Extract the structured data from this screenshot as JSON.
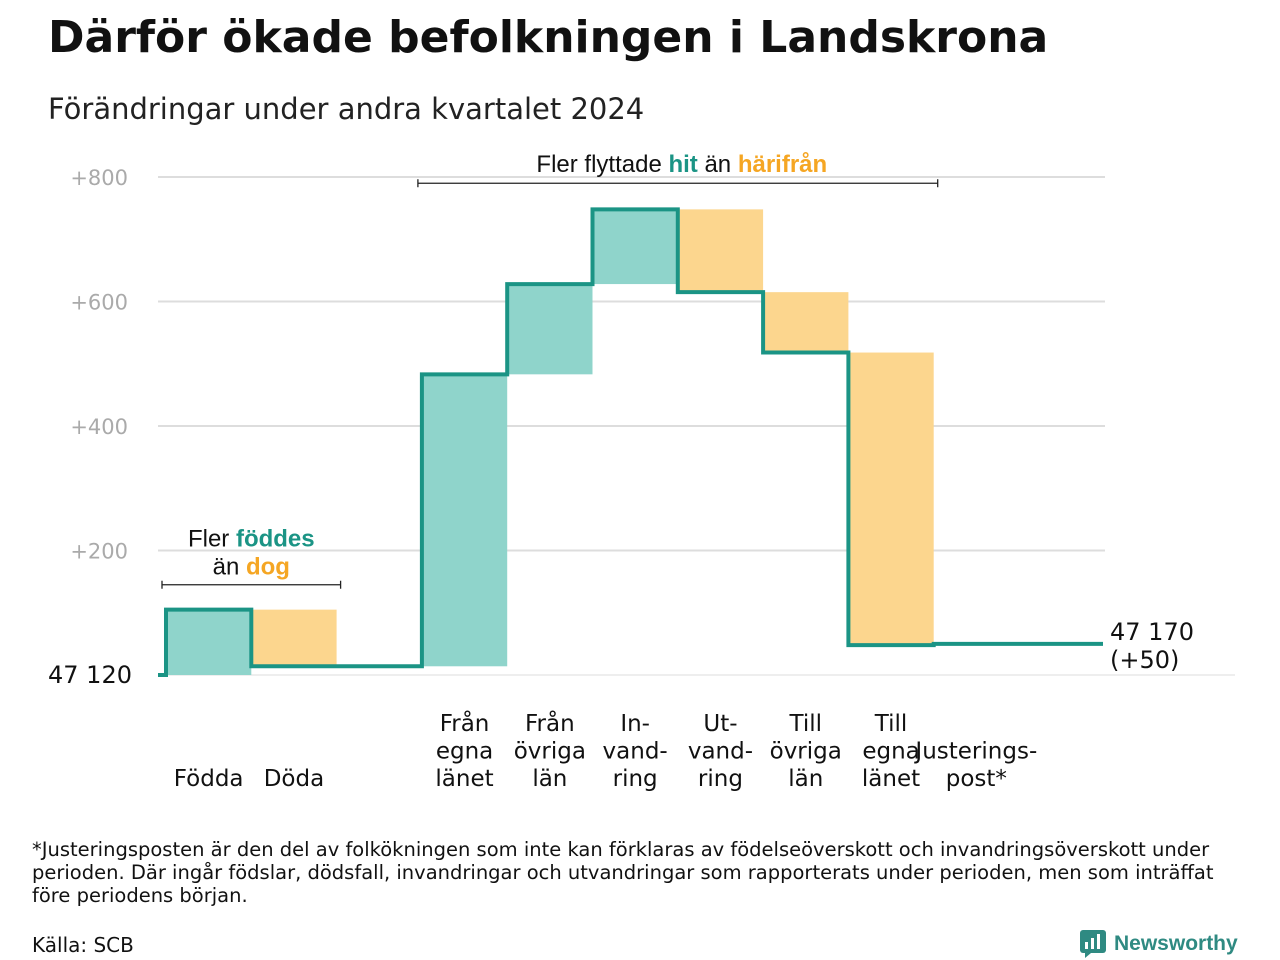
{
  "header": {
    "title": "Därför ökade befolkningen i Landskrona",
    "subtitle": "Förändringar under andra kvartalet 2024"
  },
  "colors": {
    "increase": "#8fd4cb",
    "decrease": "#fcd68e",
    "line": "#1b9485",
    "teal_text": "#1b9485",
    "orange_text": "#f5a623",
    "grid": "#dddddd",
    "tick": "#aaaaaa",
    "brand": "#2f8a82"
  },
  "chart_data": {
    "type": "waterfall",
    "base_population": 47120,
    "base_label": "47  120",
    "end_label_line1": "47 170",
    "end_label_line2": "(+50)",
    "y_ticks": [
      "+800",
      "+600",
      "+400",
      "+200"
    ],
    "y_tick_values": [
      800,
      600,
      400,
      200
    ],
    "ylim": [
      0,
      800
    ],
    "grid": true,
    "steps": [
      {
        "label": [
          "Födda"
        ],
        "start": 0,
        "end": 105,
        "kind": "increase"
      },
      {
        "label": [
          "Döda"
        ],
        "start": 105,
        "end": 14,
        "kind": "decrease"
      },
      {
        "label": [],
        "start": 14,
        "end": 14,
        "kind": "none"
      },
      {
        "label": [
          "Från",
          "egna",
          "länet"
        ],
        "start": 14,
        "end": 483,
        "kind": "increase"
      },
      {
        "label": [
          "Från",
          "övriga",
          "län"
        ],
        "start": 483,
        "end": 628,
        "kind": "increase"
      },
      {
        "label": [
          "In-",
          "vand-",
          "ring"
        ],
        "start": 628,
        "end": 748,
        "kind": "increase"
      },
      {
        "label": [
          "Ut-",
          "vand-",
          "ring"
        ],
        "start": 748,
        "end": 615,
        "kind": "decrease"
      },
      {
        "label": [
          "Till",
          "övriga",
          "län"
        ],
        "start": 615,
        "end": 518,
        "kind": "decrease"
      },
      {
        "label": [
          "Till",
          "egna",
          "länet"
        ],
        "start": 518,
        "end": 48,
        "kind": "decrease"
      },
      {
        "label": [
          "Justerings-",
          "post*"
        ],
        "start": 48,
        "end": 50,
        "kind": "line"
      }
    ],
    "annotations": [
      {
        "id": "births",
        "line1_prefix": "Fler ",
        "line1_highlight": "föddes",
        "line2_prefix": "än ",
        "line2_highlight": "dog",
        "bracket_from_step": 0,
        "bracket_to_step": 1,
        "bracket_level": 145
      },
      {
        "id": "migration",
        "prefix": "Fler flyttade ",
        "highlight1": "hit",
        "middle": "än ",
        "highlight2": "härifrån",
        "bracket_from_step": 3,
        "bracket_to_step": 8,
        "bracket_level": 790
      }
    ]
  },
  "footer": {
    "footnote": "*Justeringsposten är den del av folkökningen som inte kan förklaras av födelseöverskott och invandringsöverskott under perioden. Där ingår födslar, dödsfall, invandringar och utvandringar som rapporterats under perioden, men som inträffat före periodens början.",
    "source": "Källa: SCB",
    "brand": "Newsworthy",
    "brand_icon": "bar-chart-logo-icon"
  }
}
